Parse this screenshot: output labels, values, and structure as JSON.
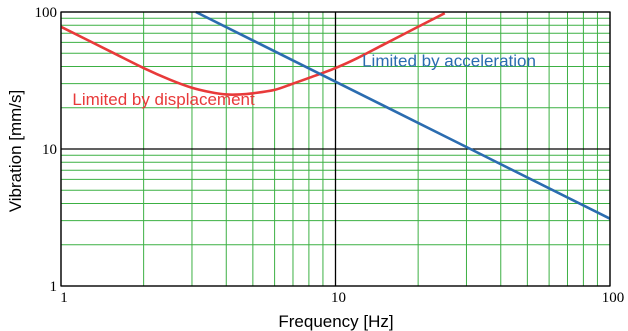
{
  "chart_data": {
    "type": "line",
    "xlabel": "Frequency  [Hz]",
    "ylabel": "Vibration  [mm/s]",
    "xscale": "log",
    "yscale": "log",
    "xlim": [
      1,
      100
    ],
    "ylim": [
      1,
      100
    ],
    "grid": true,
    "x_ticks": [
      {
        "value": 1,
        "label": "1"
      },
      {
        "value": 10,
        "label": "10"
      },
      {
        "value": 100,
        "label": "100"
      }
    ],
    "y_ticks": [
      {
        "value": 1,
        "label": "1"
      },
      {
        "value": 10,
        "label": "10"
      },
      {
        "value": 100,
        "label": "100"
      }
    ],
    "series": [
      {
        "label": "Limited by displacement",
        "color": "#e83a3a",
        "x": [
          1,
          1.5,
          2,
          2.5,
          3,
          3.5,
          4,
          4.5,
          5,
          6,
          7,
          8,
          10,
          12,
          15,
          20,
          25
        ],
        "y": [
          78,
          52,
          39,
          32,
          28,
          26,
          25,
          25,
          25.5,
          27,
          30,
          33,
          39,
          46,
          58,
          78,
          98
        ]
      },
      {
        "label": "Limited by acceleration",
        "color": "#2b6cb0",
        "x": [
          3.1,
          10,
          100
        ],
        "y": [
          100,
          31,
          3.1
        ]
      }
    ],
    "annotations": [
      {
        "text": "Limited by displacement",
        "color": "#e83a3a",
        "x": 1.1,
        "y": 21
      },
      {
        "text": "Limited by acceleration",
        "color": "#2b6cb0",
        "x": 12.5,
        "y": 40
      }
    ],
    "colors": {
      "grid_minor": "#3cb043",
      "grid_major": "#000000",
      "frame": "#000000"
    }
  }
}
